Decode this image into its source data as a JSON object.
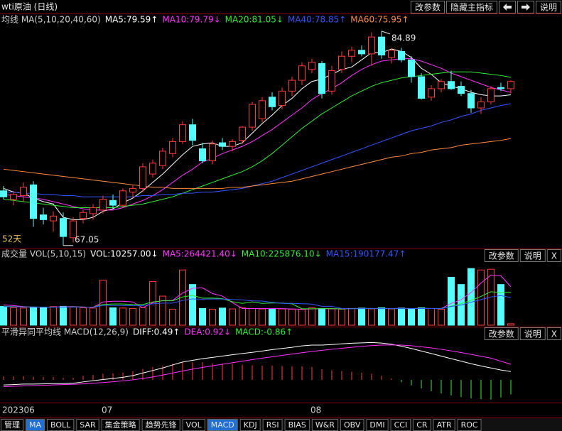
{
  "header": {
    "title": "wti原油 (日线)",
    "buttons": [
      "改参数",
      "隐藏主指标",
      "说明"
    ]
  },
  "chart_data": [
    {
      "type": "candlestick",
      "title": "均线 MA(5,10,20,40,60)",
      "categories": [
        "202306",
        null,
        null,
        null,
        null,
        null,
        null,
        null,
        null,
        null,
        "07",
        null,
        null,
        null,
        null,
        null,
        null,
        null,
        null,
        null,
        null,
        null,
        null,
        null,
        null,
        null,
        null,
        null,
        null,
        null,
        null,
        "08",
        null,
        null,
        null,
        null,
        null,
        null,
        null,
        null,
        null,
        null,
        null,
        null,
        null,
        null,
        null,
        null,
        null,
        null,
        null,
        null
      ],
      "open": [
        71.6,
        70.9,
        71.2,
        72.1,
        69.6,
        69.1,
        69.3,
        67.7,
        69.3,
        69.7,
        70.0,
        70.8,
        70.4,
        71.5,
        71.8,
        73.0,
        73.7,
        74.7,
        75.7,
        77.1,
        75.1,
        74.1,
        75.6,
        75.3,
        75.8,
        76.9,
        77.6,
        79.4,
        78.7,
        79.9,
        80.8,
        81.7,
        82.2,
        79.9,
        81.7,
        82.8,
        83.3,
        83.0,
        84.4,
        82.7,
        83.2,
        82.5,
        81.1,
        79.4,
        80.1,
        80.7,
        80.3,
        79.7,
        78.5,
        79.0,
        80.2,
        80.1
      ],
      "high": [
        72.0,
        71.6,
        72.3,
        72.4,
        70.2,
        69.9,
        69.8,
        69.4,
        70.0,
        70.5,
        71.2,
        71.3,
        71.8,
        72.1,
        73.9,
        74.2,
        75.2,
        76.0,
        77.4,
        77.6,
        75.6,
        75.8,
        76.0,
        75.9,
        77.0,
        79.0,
        79.4,
        79.8,
        80.2,
        81.1,
        82.3,
        82.6,
        82.4,
        82.0,
        83.2,
        83.6,
        83.7,
        84.8,
        84.89,
        83.5,
        83.5,
        82.8,
        81.4,
        80.4,
        80.9,
        81.6,
        80.7,
        80.0,
        79.4,
        80.3,
        80.6,
        80.8
      ],
      "low": [
        70.9,
        70.4,
        70.7,
        68.6,
        68.8,
        68.2,
        67.05,
        67.3,
        68.9,
        69.2,
        69.7,
        70.1,
        70.2,
        71.0,
        71.5,
        72.7,
        73.4,
        74.4,
        75.5,
        75.4,
        73.9,
        73.8,
        75.0,
        74.9,
        75.5,
        76.6,
        77.3,
        78.3,
        78.4,
        79.5,
        80.4,
        81.4,
        79.3,
        79.6,
        81.4,
        82.3,
        82.8,
        82.0,
        82.6,
        82.2,
        82.3,
        80.6,
        79.2,
        79.1,
        79.8,
        80.0,
        79.5,
        78.1,
        78.0,
        78.8,
        79.9,
        79.7
      ],
      "close": [
        71.1,
        71.3,
        71.9,
        69.3,
        69.2,
        69.5,
        67.8,
        69.1,
        69.8,
        70.2,
        70.9,
        70.4,
        71.6,
        71.8,
        73.6,
        73.9,
        74.9,
        75.7,
        77.1,
        75.8,
        74.1,
        75.5,
        75.3,
        75.7,
        76.9,
        78.8,
        79.1,
        78.6,
        79.9,
        80.8,
        82.0,
        82.3,
        79.7,
        81.6,
        82.8,
        83.3,
        83.0,
        84.4,
        82.9,
        83.3,
        82.5,
        81.1,
        79.3,
        80.1,
        80.7,
        80.1,
        79.7,
        78.5,
        79.0,
        80.1,
        80.1,
        80.7
      ],
      "up_color": "#ff3c3c",
      "down_color": "#54fcfc",
      "ylim": [
        66.8,
        86.3
      ],
      "annotations": [
        "84.89",
        "67.05"
      ],
      "period_label": "52天",
      "series": [
        {
          "name": "MA5:79.59↑",
          "color": "#ffffff",
          "values": [
            71.8,
            71.5,
            71.4,
            71.0,
            70.7,
            70.5,
            69.4,
            69.2,
            69.2,
            69.4,
            69.9,
            70.1,
            70.6,
            71.0,
            71.6,
            72.3,
            73.0,
            73.8,
            74.6,
            75.3,
            75.5,
            75.6,
            75.3,
            75.3,
            75.6,
            76.4,
            77.2,
            77.9,
            78.7,
            79.3,
            80.1,
            80.7,
            80.9,
            81.3,
            81.7,
            81.9,
            82.5,
            83.1,
            83.1,
            83.4,
            83.2,
            82.7,
            81.8,
            81.3,
            80.6,
            80.3,
            80.1,
            79.8,
            79.6,
            79.5,
            79.5,
            79.59
          ]
        },
        {
          "name": "MA10:79.79↓",
          "color": "#ff33ff",
          "values": [
            71.3,
            71.2,
            71.1,
            71.0,
            70.9,
            70.7,
            70.5,
            70.3,
            70.1,
            70.0,
            70.0,
            70.0,
            70.2,
            70.5,
            70.8,
            71.2,
            71.7,
            72.3,
            72.9,
            73.4,
            74.0,
            74.3,
            74.7,
            75.0,
            75.3,
            75.7,
            76.2,
            76.7,
            77.3,
            77.9,
            78.5,
            79.2,
            79.7,
            80.1,
            80.6,
            81.2,
            81.7,
            82.1,
            82.4,
            82.5,
            82.6,
            82.6,
            82.4,
            82.1,
            81.8,
            81.4,
            81.1,
            80.8,
            80.5,
            80.2,
            80.0,
            79.79
          ]
        },
        {
          "name": "MA20:81.05↓",
          "color": "#33ee33",
          "values": [
            70.9,
            70.8,
            70.7,
            70.6,
            70.5,
            70.4,
            70.3,
            70.2,
            70.2,
            70.2,
            70.2,
            70.2,
            70.3,
            70.4,
            70.5,
            70.7,
            70.9,
            71.1,
            71.4,
            71.7,
            72.0,
            72.3,
            72.6,
            72.9,
            73.2,
            73.6,
            74.1,
            74.7,
            75.4,
            76.1,
            76.8,
            77.4,
            78.0,
            78.5,
            79.0,
            79.5,
            79.9,
            80.3,
            80.6,
            80.8,
            81.0,
            81.1,
            81.2,
            81.3,
            81.4,
            81.5,
            81.5,
            81.5,
            81.4,
            81.3,
            81.2,
            81.05
          ]
        },
        {
          "name": "MA40:78.85↑",
          "color": "#3355ff",
          "values": [
            71.5,
            71.5,
            71.4,
            71.4,
            71.3,
            71.3,
            71.2,
            71.2,
            71.1,
            71.1,
            71.1,
            71.1,
            71.1,
            71.1,
            71.2,
            71.2,
            71.3,
            71.3,
            71.4,
            71.4,
            71.5,
            71.5,
            71.6,
            71.7,
            71.8,
            72.0,
            72.2,
            72.4,
            72.7,
            73.0,
            73.3,
            73.6,
            73.9,
            74.2,
            74.5,
            74.8,
            75.1,
            75.4,
            75.7,
            76.0,
            76.3,
            76.6,
            76.8,
            77.0,
            77.3,
            77.5,
            77.8,
            78.0,
            78.3,
            78.5,
            78.7,
            78.85
          ]
        },
        {
          "name": "MA60:75.95↑",
          "color": "#ff8c40",
          "values": [
            73.4,
            73.3,
            73.2,
            73.1,
            73.0,
            72.9,
            72.8,
            72.7,
            72.6,
            72.5,
            72.4,
            72.3,
            72.2,
            72.1,
            72.0,
            71.9,
            71.9,
            71.8,
            71.8,
            71.8,
            71.8,
            71.8,
            71.8,
            71.9,
            71.9,
            72.0,
            72.1,
            72.2,
            72.3,
            72.4,
            72.6,
            72.8,
            73.0,
            73.2,
            73.4,
            73.6,
            73.8,
            74.0,
            74.2,
            74.4,
            74.5,
            74.7,
            74.8,
            75.0,
            75.1,
            75.2,
            75.4,
            75.5,
            75.6,
            75.7,
            75.8,
            75.95
          ]
        }
      ]
    },
    {
      "type": "volume",
      "title": "成交量 VOL(5,10,15)",
      "values_name": "VOL:10257.00↓",
      "values_color": "#ffffff",
      "values": [
        130000,
        120000,
        118000,
        125000,
        122000,
        128000,
        130000,
        125000,
        120000,
        118000,
        310000,
        120000,
        118000,
        115000,
        120000,
        300000,
        200000,
        110000,
        380000,
        280000,
        115000,
        110000,
        118000,
        112000,
        120000,
        115000,
        112000,
        110000,
        112000,
        110000,
        108000,
        120000,
        115000,
        112000,
        110000,
        115000,
        118000,
        112000,
        120000,
        112000,
        118000,
        110000,
        120000,
        115000,
        110000,
        330000,
        280000,
        390000,
        380000,
        385000,
        280000,
        10257
      ],
      "ylim": [
        0,
        420000
      ],
      "series": [
        {
          "name": "MA5:264421.40↓",
          "color": "#ff33ff",
          "values": [
            140000,
            135000,
            128000,
            124000,
            123000,
            125000,
            127000,
            128000,
            125000,
            123000,
            160000,
            165000,
            165000,
            160000,
            120000,
            155000,
            170000,
            170000,
            222000,
            254000,
            257000,
            218000,
            200000,
            156000,
            115000,
            115000,
            115000,
            114000,
            114000,
            112000,
            110000,
            112000,
            113000,
            114000,
            113000,
            114000,
            116000,
            115000,
            115000,
            115000,
            116000,
            114000,
            116000,
            115000,
            115000,
            150000,
            175000,
            225000,
            290000,
            345000,
            340000,
            264421.4
          ]
        },
        {
          "name": "MA10:225876.10↓",
          "color": "#33ee33",
          "values": [
            130000,
            128000,
            126000,
            125000,
            124000,
            124000,
            125000,
            126000,
            125000,
            124000,
            142000,
            146000,
            146000,
            143000,
            142000,
            160000,
            168000,
            168000,
            194000,
            205000,
            186000,
            187000,
            183000,
            162000,
            150000,
            160000,
            150000,
            153000,
            152000,
            147000,
            113000,
            113000,
            114000,
            114000,
            112000,
            114000,
            116000,
            114000,
            116000,
            114000,
            115000,
            115000,
            116000,
            115000,
            114000,
            132000,
            148000,
            171000,
            198000,
            230000,
            225000,
            225876.1
          ]
        },
        {
          "name": "MA15:190177.47↑",
          "color": "#3355ff",
          "values": [
            128000,
            127000,
            126000,
            125000,
            125000,
            124000,
            125000,
            125000,
            125000,
            124000,
            136000,
            136000,
            135000,
            135000,
            135000,
            147000,
            152000,
            152000,
            170000,
            181000,
            179000,
            180000,
            180000,
            177000,
            174000,
            167000,
            166000,
            157000,
            150000,
            150000,
            148000,
            145000,
            130000,
            130000,
            115000,
            113000,
            114000,
            114000,
            114000,
            114000,
            114000,
            114000,
            115000,
            115000,
            114000,
            129000,
            139000,
            158000,
            176000,
            194000,
            204000,
            190177.47
          ]
        }
      ]
    },
    {
      "type": "macd",
      "title": "平滑异同平均线 MACD(12,26,9)",
      "values_name": "MACD:-0.86↑",
      "values_color": "#33ee33",
      "up_color": "#ff3c3c",
      "down_color": "#33ee33",
      "values": [
        0.2,
        0.2,
        0.22,
        0.18,
        0.16,
        0.16,
        0.12,
        0.12,
        0.24,
        0.3,
        0.36,
        0.38,
        0.42,
        0.5,
        0.64,
        0.76,
        0.84,
        0.96,
        1.06,
        1.04,
        1.04,
        0.98,
        0.96,
        0.94,
        0.9,
        0.86,
        0.84,
        0.84,
        0.82,
        0.8,
        0.8,
        0.76,
        0.62,
        0.56,
        0.52,
        0.48,
        0.42,
        0.36,
        0.24,
        0.08,
        -0.14,
        -0.32,
        -0.5,
        -0.66,
        -0.8,
        -0.92,
        -1.02,
        -1.1,
        -1.14,
        -1.16,
        -1.04,
        -0.86
      ],
      "ylim": [
        -1.3,
        2.3
      ],
      "series": [
        {
          "name": "DIFF:0.49↑",
          "color": "#ffffff",
          "values": [
            -0.3,
            -0.28,
            -0.25,
            -0.25,
            -0.24,
            -0.22,
            -0.22,
            -0.2,
            -0.12,
            -0.05,
            0.02,
            0.08,
            0.15,
            0.25,
            0.4,
            0.55,
            0.7,
            0.88,
            1.05,
            1.15,
            1.25,
            1.32,
            1.4,
            1.48,
            1.55,
            1.62,
            1.7,
            1.78,
            1.85,
            1.92,
            2.0,
            2.05,
            2.05,
            2.08,
            2.12,
            2.16,
            2.18,
            2.2,
            2.17,
            2.1,
            1.98,
            1.85,
            1.7,
            1.55,
            1.4,
            1.25,
            1.1,
            0.95,
            0.82,
            0.7,
            0.58,
            0.49
          ]
        },
        {
          "name": "DEA:0.92↓",
          "color": "#ff33ff",
          "values": [
            -0.4,
            -0.38,
            -0.36,
            -0.34,
            -0.32,
            -0.3,
            -0.28,
            -0.26,
            -0.24,
            -0.2,
            -0.16,
            -0.11,
            -0.06,
            0.0,
            0.08,
            0.17,
            0.28,
            0.4,
            0.52,
            0.63,
            0.73,
            0.83,
            0.92,
            1.01,
            1.1,
            1.19,
            1.28,
            1.36,
            1.44,
            1.52,
            1.6,
            1.67,
            1.74,
            1.8,
            1.86,
            1.92,
            1.97,
            2.02,
            2.05,
            2.06,
            2.05,
            2.01,
            1.95,
            1.88,
            1.8,
            1.71,
            1.61,
            1.5,
            1.39,
            1.28,
            1.1,
            0.92
          ]
        }
      ]
    }
  ],
  "panel_buttons": [
    "改参数",
    "说明",
    "X"
  ],
  "toolbar": [
    "管理",
    "MA",
    "BOLL",
    "SAR",
    "集金策略",
    "趋势先锋",
    "VOL",
    "MACD",
    "KDJ",
    "RSI",
    "BIAS",
    "W&R",
    "OBV",
    "DMI",
    "CCI",
    "CR",
    "ATR",
    "ROC"
  ]
}
